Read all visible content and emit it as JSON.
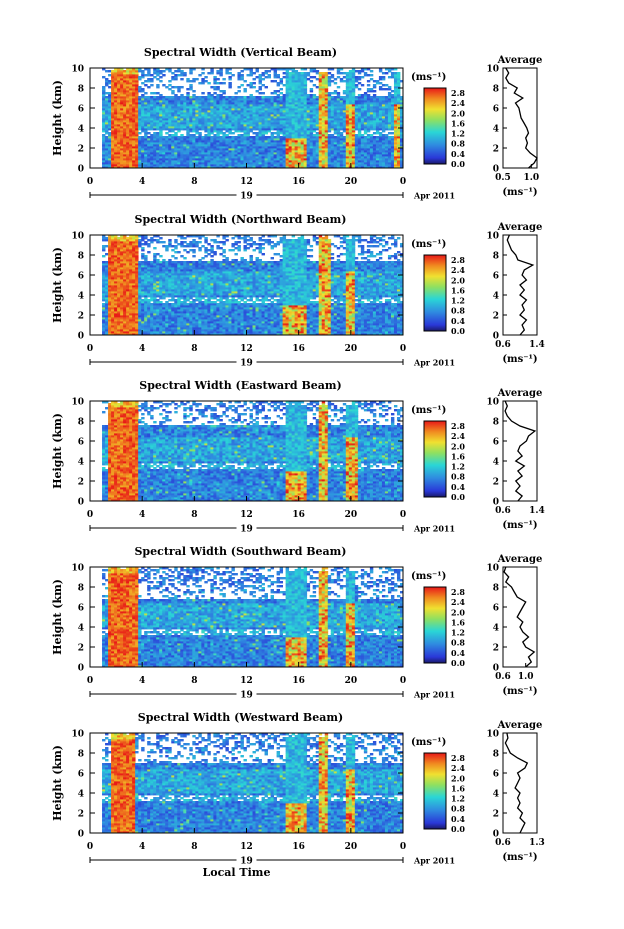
{
  "chart_data": [
    {
      "type": "heatmap",
      "title": "Spectral Width (Vertical Beam)",
      "ylabel": "Height (km)",
      "xticks": [
        "0",
        "4",
        "8",
        "12",
        "16",
        "20",
        "0"
      ],
      "xlim": [
        0,
        24
      ],
      "date_label": "19",
      "month_label": "Apr 2011",
      "yticks": [
        "0",
        "2",
        "4",
        "6",
        "8",
        "10"
      ],
      "ylim": [
        0,
        10
      ],
      "colorbar": {
        "unit": "(ms⁻¹)",
        "ticks": [
          "0.0",
          "0.4",
          "0.8",
          "1.2",
          "1.6",
          "2.0",
          "2.4",
          "2.8"
        ],
        "range": [
          0,
          3.0
        ]
      },
      "features": {
        "layer_top_km": 7.2,
        "gap_km": [
          3.2,
          3.9
        ],
        "intense_columns_hour": [
          [
            1.6,
            3.6
          ],
          [
            15.0,
            16.6
          ],
          [
            17.6,
            18.3
          ],
          [
            19.6,
            20.4
          ],
          [
            23.2,
            23.7
          ]
        ]
      },
      "average": {
        "title": "Average",
        "xticks": [
          "0.5",
          "1.0"
        ],
        "xlim": [
          0.5,
          1.1
        ],
        "xlabel": "(ms⁻¹)",
        "profile": [
          [
            0.95,
            0
          ],
          [
            1.05,
            0.5
          ],
          [
            1.1,
            1
          ],
          [
            0.98,
            1.5
          ],
          [
            0.9,
            2
          ],
          [
            0.93,
            2.5
          ],
          [
            0.9,
            3
          ],
          [
            0.95,
            3.5
          ],
          [
            0.92,
            4
          ],
          [
            0.87,
            4.5
          ],
          [
            0.82,
            5
          ],
          [
            0.8,
            5.5
          ],
          [
            0.78,
            6
          ],
          [
            0.72,
            6.5
          ],
          [
            0.85,
            7
          ],
          [
            0.7,
            7.5
          ],
          [
            0.75,
            8
          ],
          [
            0.6,
            8.5
          ],
          [
            0.55,
            9
          ],
          [
            0.6,
            9.5
          ],
          [
            0.55,
            10
          ]
        ]
      }
    },
    {
      "type": "heatmap",
      "title": "Spectral Width (Northward Beam)",
      "ylabel": "Height (km)",
      "xticks": [
        "0",
        "4",
        "8",
        "12",
        "16",
        "20",
        "0"
      ],
      "xlim": [
        0,
        24
      ],
      "date_label": "19",
      "month_label": "Apr 2011",
      "yticks": [
        "0",
        "2",
        "4",
        "6",
        "8",
        "10"
      ],
      "ylim": [
        0,
        10
      ],
      "colorbar": {
        "unit": "(ms⁻¹)",
        "ticks": [
          "0.0",
          "0.4",
          "0.8",
          "1.2",
          "1.6",
          "2.0",
          "2.4",
          "2.8"
        ],
        "range": [
          0,
          3.0
        ]
      },
      "features": {
        "layer_top_km": 7.4,
        "gap_km": [
          3.3,
          3.8
        ],
        "intense_columns_hour": [
          [
            1.5,
            3.7
          ],
          [
            14.8,
            16.5
          ],
          [
            17.6,
            18.4
          ],
          [
            19.7,
            20.3
          ]
        ]
      },
      "average": {
        "title": "Average",
        "xticks": [
          "0.6",
          "1.4"
        ],
        "xlim": [
          0.6,
          1.4
        ],
        "xlabel": "(ms⁻¹)",
        "profile": [
          [
            1.0,
            0
          ],
          [
            1.1,
            0.5
          ],
          [
            1.05,
            1
          ],
          [
            1.15,
            1.5
          ],
          [
            1.0,
            2
          ],
          [
            1.1,
            2.5
          ],
          [
            1.05,
            3
          ],
          [
            1.15,
            3.5
          ],
          [
            1.0,
            4
          ],
          [
            1.1,
            4.5
          ],
          [
            1.0,
            5
          ],
          [
            1.15,
            5.5
          ],
          [
            1.05,
            6
          ],
          [
            1.1,
            6.5
          ],
          [
            1.3,
            7
          ],
          [
            0.95,
            7.5
          ],
          [
            0.9,
            8
          ],
          [
            0.8,
            8.5
          ],
          [
            0.75,
            9
          ],
          [
            0.7,
            9.5
          ],
          [
            0.75,
            10
          ]
        ]
      }
    },
    {
      "type": "heatmap",
      "title": "Spectral Width (Eastward Beam)",
      "ylabel": "Height (km)",
      "xticks": [
        "0",
        "4",
        "8",
        "12",
        "16",
        "20",
        "0"
      ],
      "xlim": [
        0,
        24
      ],
      "date_label": "19",
      "month_label": "Apr 2011",
      "yticks": [
        "0",
        "2",
        "4",
        "6",
        "8",
        "10"
      ],
      "ylim": [
        0,
        10
      ],
      "colorbar": {
        "unit": "(ms⁻¹)",
        "ticks": [
          "0.0",
          "0.4",
          "0.8",
          "1.2",
          "1.6",
          "2.0",
          "2.4",
          "2.8"
        ],
        "range": [
          0,
          3.0
        ]
      },
      "features": {
        "layer_top_km": 7.6,
        "gap_km": [
          3.2,
          3.8
        ],
        "intense_columns_hour": [
          [
            1.4,
            3.6
          ],
          [
            14.9,
            16.6
          ],
          [
            17.6,
            18.3
          ],
          [
            19.6,
            20.5
          ]
        ]
      },
      "average": {
        "title": "Average",
        "xticks": [
          "0.6",
          "1.4"
        ],
        "xlim": [
          0.6,
          1.4
        ],
        "xlabel": "(ms⁻¹)",
        "profile": [
          [
            0.95,
            0
          ],
          [
            1.05,
            0.5
          ],
          [
            0.9,
            1
          ],
          [
            1.0,
            1.5
          ],
          [
            0.9,
            2
          ],
          [
            1.05,
            2.5
          ],
          [
            0.95,
            3
          ],
          [
            1.1,
            3.5
          ],
          [
            0.9,
            4
          ],
          [
            1.05,
            4.5
          ],
          [
            0.95,
            5
          ],
          [
            1.0,
            5.5
          ],
          [
            1.15,
            6
          ],
          [
            1.2,
            6.5
          ],
          [
            1.35,
            7
          ],
          [
            1.0,
            7.5
          ],
          [
            0.8,
            8
          ],
          [
            0.7,
            8.5
          ],
          [
            0.65,
            9
          ],
          [
            0.7,
            9.5
          ],
          [
            0.65,
            10
          ]
        ]
      }
    },
    {
      "type": "heatmap",
      "title": "Spectral Width (Southward Beam)",
      "ylabel": "Height (km)",
      "xticks": [
        "0",
        "4",
        "8",
        "12",
        "16",
        "20",
        "0"
      ],
      "xlim": [
        0,
        24
      ],
      "date_label": "19",
      "month_label": "Apr 2011",
      "yticks": [
        "0",
        "2",
        "4",
        "6",
        "8",
        "10"
      ],
      "ylim": [
        0,
        10
      ],
      "colorbar": {
        "unit": "(ms⁻¹)",
        "ticks": [
          "0.0",
          "0.4",
          "0.8",
          "1.2",
          "1.6",
          "2.0",
          "2.4",
          "2.8"
        ],
        "range": [
          0,
          3.0
        ]
      },
      "features": {
        "layer_top_km": 6.8,
        "gap_km": [
          3.2,
          3.8
        ],
        "intense_columns_hour": [
          [
            1.5,
            3.6
          ],
          [
            14.9,
            16.5
          ],
          [
            17.6,
            18.3
          ],
          [
            19.6,
            20.4
          ]
        ]
      },
      "average": {
        "title": "Average",
        "xticks": [
          "0.6",
          "1.0"
        ],
        "xlim": [
          0.6,
          1.2
        ],
        "xlabel": "(ms⁻¹)",
        "profile": [
          [
            1.0,
            0
          ],
          [
            1.1,
            0.5
          ],
          [
            1.05,
            1
          ],
          [
            1.15,
            1.5
          ],
          [
            1.0,
            2
          ],
          [
            0.95,
            2.5
          ],
          [
            1.05,
            3
          ],
          [
            0.95,
            3.5
          ],
          [
            0.9,
            4
          ],
          [
            0.95,
            4.5
          ],
          [
            0.85,
            5
          ],
          [
            0.9,
            5.5
          ],
          [
            0.95,
            6
          ],
          [
            1.0,
            6.5
          ],
          [
            0.85,
            7
          ],
          [
            0.8,
            7.5
          ],
          [
            0.75,
            8
          ],
          [
            0.65,
            8.5
          ],
          [
            0.7,
            9
          ],
          [
            0.62,
            9.5
          ],
          [
            0.65,
            10
          ]
        ]
      }
    },
    {
      "type": "heatmap",
      "title": "Spectral Width (Westward Beam)",
      "ylabel": "Height (km)",
      "xlabel": "Local Time",
      "xticks": [
        "0",
        "4",
        "8",
        "12",
        "16",
        "20",
        "0"
      ],
      "xlim": [
        0,
        24
      ],
      "date_label": "19",
      "month_label": "Apr 2011",
      "yticks": [
        "0",
        "2",
        "4",
        "6",
        "8",
        "10"
      ],
      "ylim": [
        0,
        10
      ],
      "colorbar": {
        "unit": "(ms⁻¹)",
        "ticks": [
          "0.0",
          "0.4",
          "0.8",
          "1.2",
          "1.6",
          "2.0",
          "2.4",
          "2.8"
        ],
        "range": [
          0,
          3.0
        ]
      },
      "features": {
        "layer_top_km": 7.0,
        "gap_km": [
          3.3,
          3.9
        ],
        "intense_columns_hour": [
          [
            1.6,
            3.5
          ],
          [
            15.0,
            16.5
          ],
          [
            17.6,
            18.3
          ],
          [
            19.7,
            20.4
          ]
        ]
      },
      "average": {
        "title": "Average",
        "xticks": [
          "0.6",
          "1.3"
        ],
        "xlim": [
          0.6,
          1.3
        ],
        "xlabel": "(ms⁻¹)",
        "profile": [
          [
            0.95,
            0
          ],
          [
            1.0,
            0.5
          ],
          [
            1.05,
            1
          ],
          [
            0.95,
            1.5
          ],
          [
            1.0,
            2
          ],
          [
            0.9,
            2.5
          ],
          [
            0.95,
            3
          ],
          [
            0.9,
            3.5
          ],
          [
            0.95,
            4
          ],
          [
            0.85,
            4.5
          ],
          [
            0.9,
            5
          ],
          [
            0.95,
            5.5
          ],
          [
            0.9,
            6
          ],
          [
            1.05,
            6.5
          ],
          [
            1.1,
            7
          ],
          [
            0.9,
            7.5
          ],
          [
            0.75,
            8
          ],
          [
            0.7,
            8.5
          ],
          [
            0.65,
            9
          ],
          [
            0.7,
            9.5
          ],
          [
            0.68,
            10
          ]
        ]
      }
    }
  ]
}
